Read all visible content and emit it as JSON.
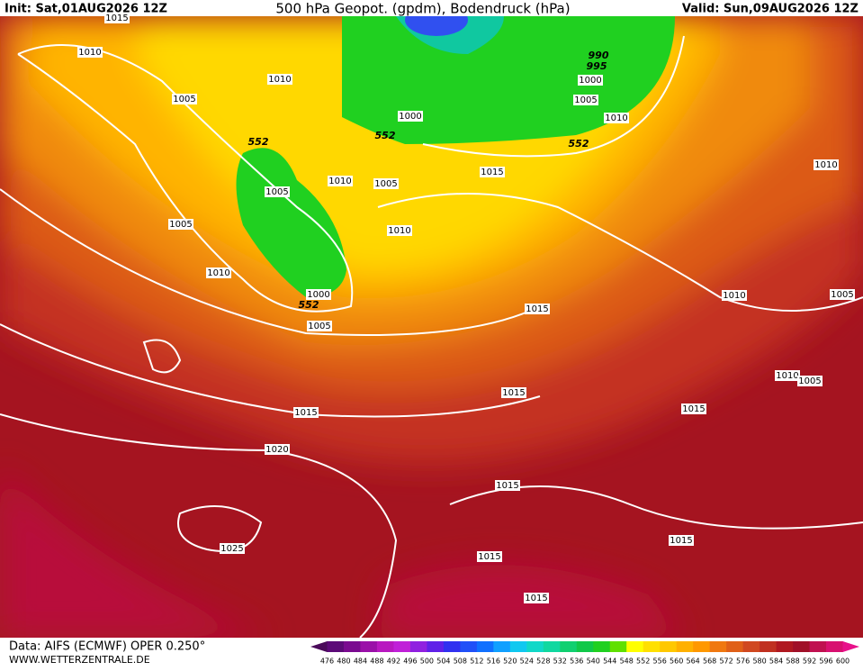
{
  "header": {
    "init": "Init: Sat,01AUG2026 12Z",
    "title": "500 hPa Geopot. (gpdm), Bodendruck (hPa)",
    "valid": "Valid: Sun,09AUG2026 12Z"
  },
  "isobar_labels": [
    "1015",
    "1010",
    "1010",
    "1005",
    "552",
    "552",
    "1005",
    "1010",
    "1005",
    "1005",
    "1010",
    "1010",
    "1000",
    "552",
    "1005",
    "990",
    "995",
    "1000",
    "1000",
    "1005",
    "1010",
    "552",
    "1015",
    "1010",
    "1010",
    "1015",
    "1005",
    "1015",
    "1015",
    "1010",
    "1005",
    "1015",
    "1020",
    "1015",
    "1025",
    "1015",
    "1015",
    "1015"
  ],
  "legend": {
    "labels": [
      476,
      480,
      484,
      488,
      492,
      496,
      500,
      504,
      508,
      512,
      516,
      520,
      524,
      528,
      532,
      536,
      540,
      544,
      548,
      552,
      556,
      560,
      564,
      568,
      572,
      576,
      580,
      584,
      588,
      592,
      596,
      600
    ],
    "colors": [
      "#4a0a5a",
      "#5c0a78",
      "#7a0a90",
      "#9a10a8",
      "#b818c0",
      "#c020d8",
      "#9020e0",
      "#6020e8",
      "#3030f0",
      "#2050f8",
      "#1070ff",
      "#10a0ff",
      "#10c8f0",
      "#10d8c8",
      "#10d8a0",
      "#10d070",
      "#10c848",
      "#20d020",
      "#60e000",
      "#ffff00",
      "#ffe000",
      "#ffc800",
      "#ffb000",
      "#ff9800",
      "#f07810",
      "#e06018",
      "#d04820",
      "#c03020",
      "#b01820",
      "#a01028",
      "#c01050",
      "#d81070",
      "#e8108a"
    ]
  },
  "footer": {
    "source": "Data: AIFS (ECMWF) OPER 0.250°",
    "website": "WWW.WETTERZENTRALE.DE"
  }
}
